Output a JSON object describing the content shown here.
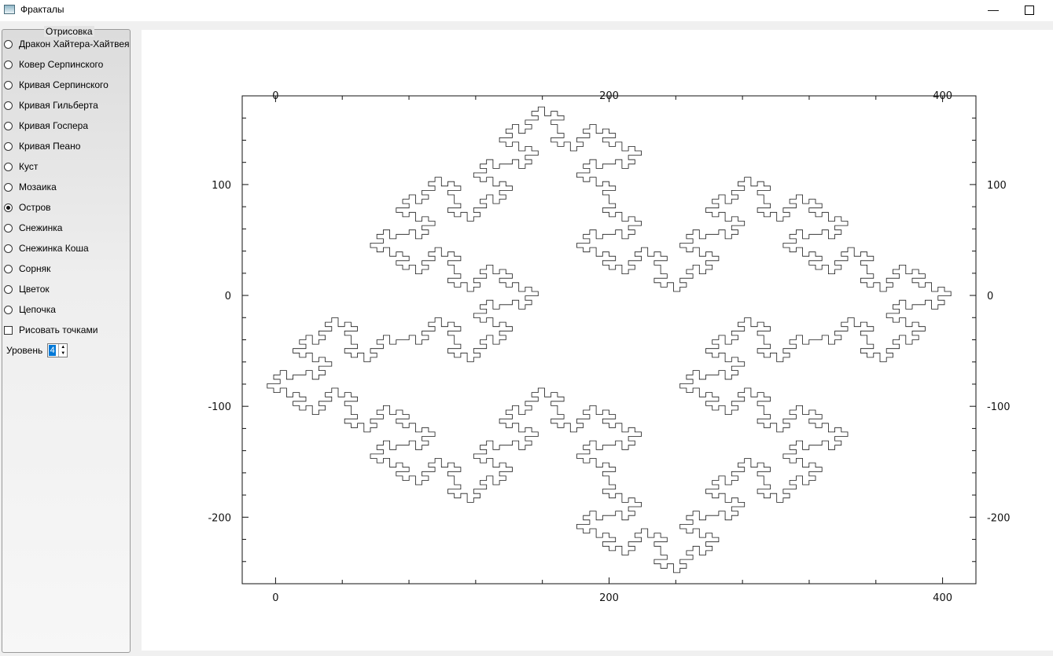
{
  "window": {
    "title": "Фракталы"
  },
  "panel": {
    "legend": "Отрисовка",
    "options": [
      {
        "label": "Дракон Хайтера-Хайтвея",
        "selected": false
      },
      {
        "label": "Ковер Серпинского",
        "selected": false
      },
      {
        "label": "Кривая Серпинского",
        "selected": false
      },
      {
        "label": "Кривая Гильберта",
        "selected": false
      },
      {
        "label": "Кривая Госпера",
        "selected": false
      },
      {
        "label": "Кривая Пеано",
        "selected": false
      },
      {
        "label": "Куст",
        "selected": false
      },
      {
        "label": "Мозаика",
        "selected": false
      },
      {
        "label": "Остров",
        "selected": true
      },
      {
        "label": "Снежинка",
        "selected": false
      },
      {
        "label": "Снежинка Коша",
        "selected": false
      },
      {
        "label": "Сорняк",
        "selected": false
      },
      {
        "label": "Цветок",
        "selected": false
      },
      {
        "label": "Цепочка",
        "selected": false
      }
    ],
    "draw_points_label": "Рисовать точками",
    "draw_points_checked": false,
    "level_label": "Уровень",
    "level_value": "4"
  },
  "chart_data": {
    "type": "line",
    "title": "",
    "xlim": [
      -20,
      420
    ],
    "ylim": [
      -260,
      180
    ],
    "x_ticks": [
      "0",
      "200",
      "400"
    ],
    "y_ticks": [
      "100",
      "0",
      "-100",
      "-200"
    ],
    "series": [
      {
        "fractal": "Остров",
        "level": 4
      }
    ]
  }
}
